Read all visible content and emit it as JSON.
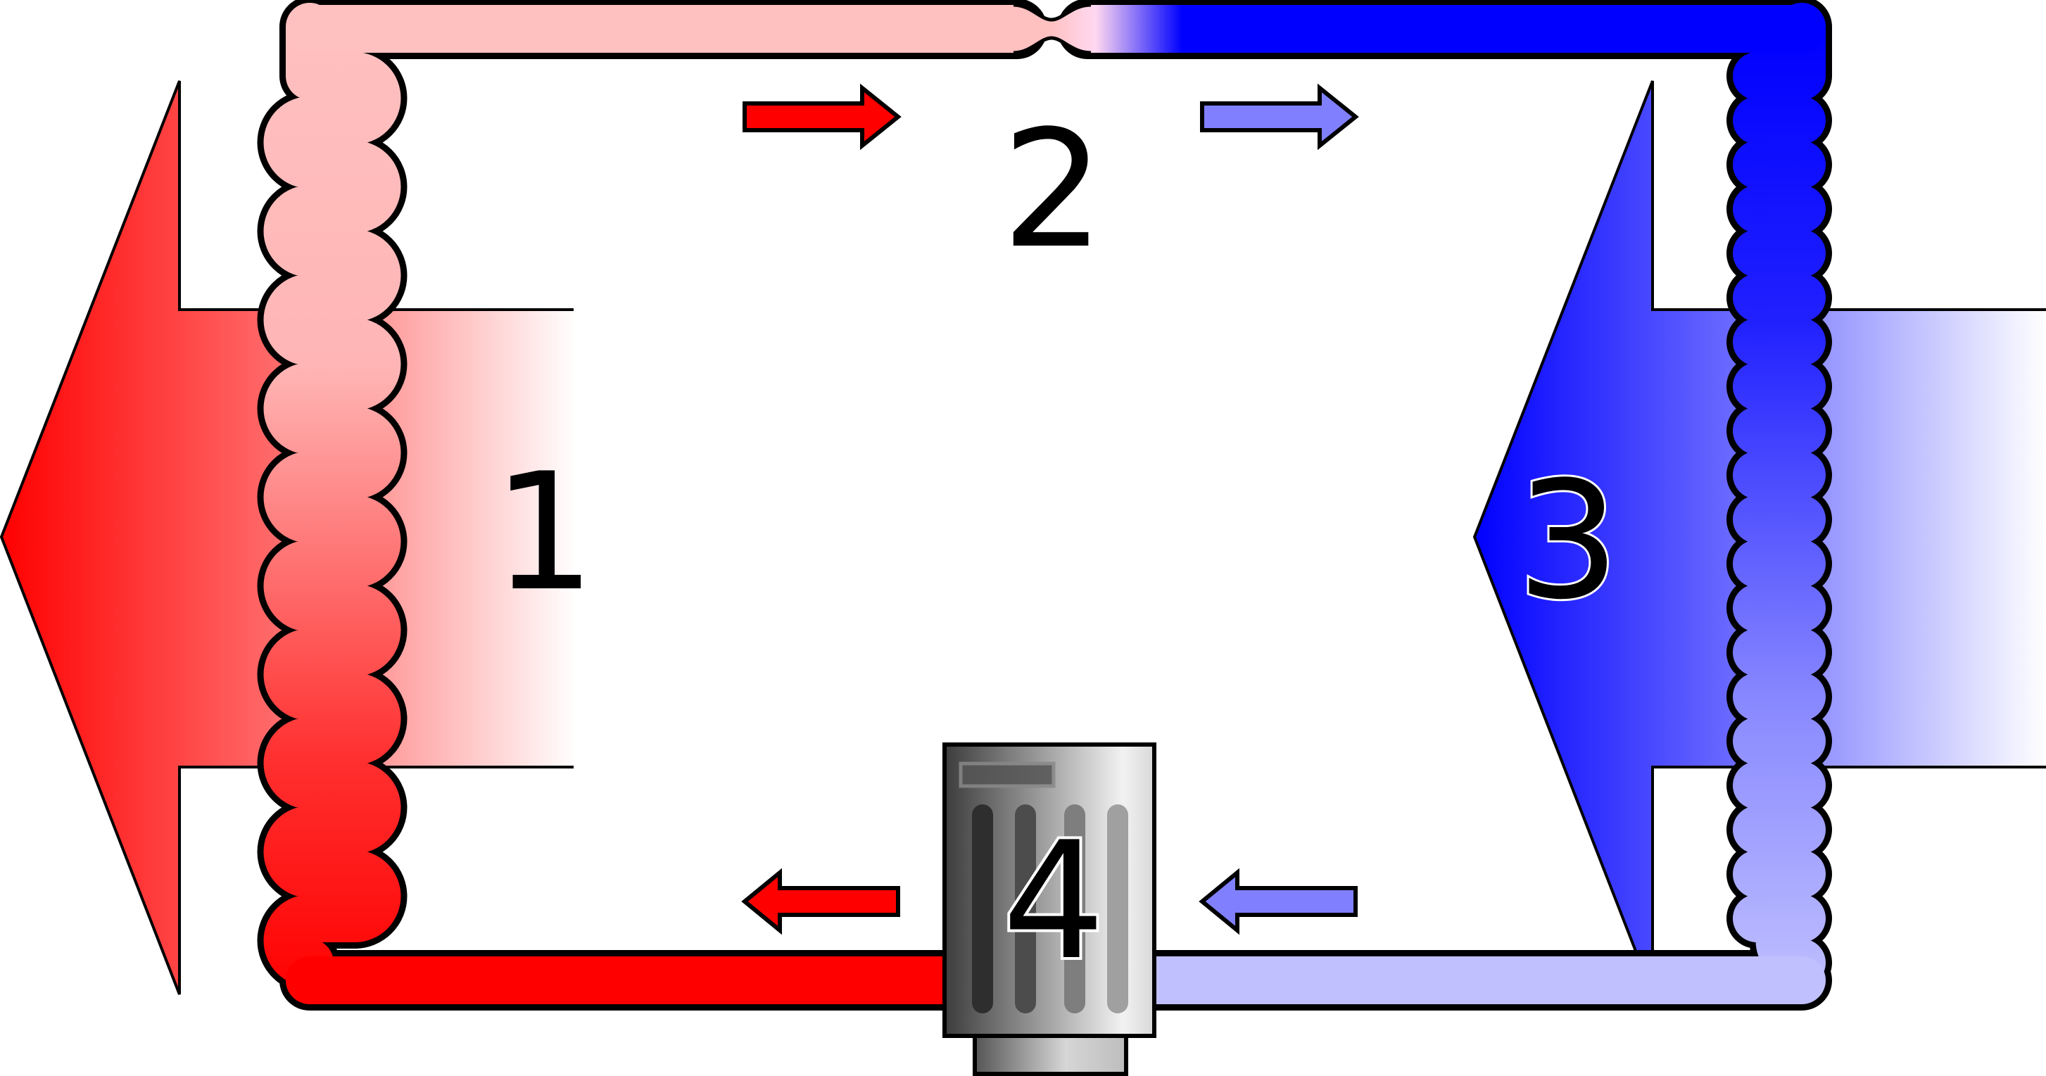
{
  "diagram": {
    "labels": {
      "condenser": "1",
      "expansion_valve": "2",
      "evaporator": "3",
      "compressor": "4"
    },
    "colors": {
      "hot": "#ff0000",
      "warm": "#ffc0c0",
      "cold": "#0000ff",
      "cool": "#c0c0ff",
      "arrow_hot": "#ff0000",
      "arrow_cold": "#8080ff",
      "outline": "#000000"
    }
  }
}
